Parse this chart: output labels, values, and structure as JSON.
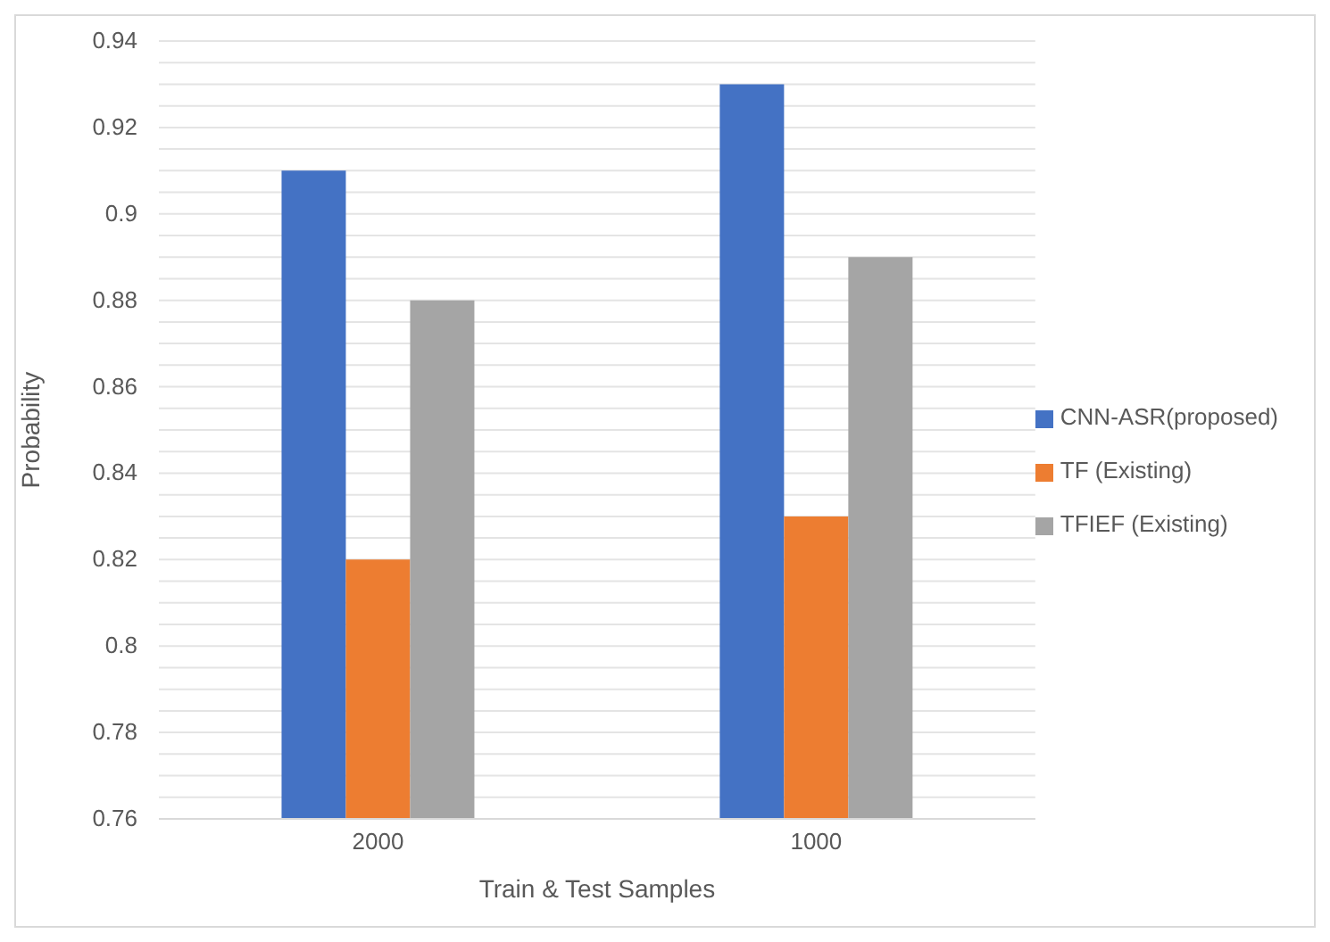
{
  "chart_data": {
    "type": "bar",
    "xlabel": "Train & Test Samples",
    "ylabel": "Probability",
    "categories": [
      "2000",
      "1000"
    ],
    "series": [
      {
        "name": "CNN-ASR(proposed)",
        "color": "#4472c4",
        "values": [
          0.91,
          0.93
        ]
      },
      {
        "name": "TF (Existing)",
        "color": "#ed7d31",
        "values": [
          0.82,
          0.83
        ]
      },
      {
        "name": "TFIEF (Existing)",
        "color": "#a5a5a5",
        "values": [
          0.88,
          0.89
        ]
      }
    ],
    "ylim": [
      0.76,
      0.94
    ],
    "yticks": [
      0.76,
      {
        "value": 0.765,
        "label": null
      },
      {
        "value": 0.77,
        "label": null
      },
      {
        "value": 0.775,
        "label": null
      },
      0.78,
      {
        "value": 0.785,
        "label": null
      },
      {
        "value": 0.79,
        "label": null
      },
      {
        "value": 0.795,
        "label": null
      },
      0.8,
      {
        "value": 0.805,
        "label": null
      },
      {
        "value": 0.81,
        "label": null
      },
      {
        "value": 0.815,
        "label": null
      },
      0.82,
      {
        "value": 0.825,
        "label": null
      },
      {
        "value": 0.83,
        "label": null
      },
      {
        "value": 0.835,
        "label": null
      },
      0.84,
      {
        "value": 0.845,
        "label": null
      },
      {
        "value": 0.85,
        "label": null
      },
      {
        "value": 0.855,
        "label": null
      },
      0.86,
      {
        "value": 0.865,
        "label": null
      },
      {
        "value": 0.87,
        "label": null
      },
      {
        "value": 0.875,
        "label": null
      },
      0.88,
      {
        "value": 0.885,
        "label": null
      },
      {
        "value": 0.89,
        "label": null
      },
      {
        "value": 0.895,
        "label": null
      },
      0.9,
      {
        "value": 0.905,
        "label": null
      },
      {
        "value": 0.91,
        "label": null
      },
      {
        "value": 0.915,
        "label": null
      },
      0.92,
      {
        "value": 0.925,
        "label": null
      },
      {
        "value": 0.93,
        "label": null
      },
      {
        "value": 0.935,
        "label": null
      },
      0.94
    ],
    "grid": "y",
    "legend": "right"
  }
}
